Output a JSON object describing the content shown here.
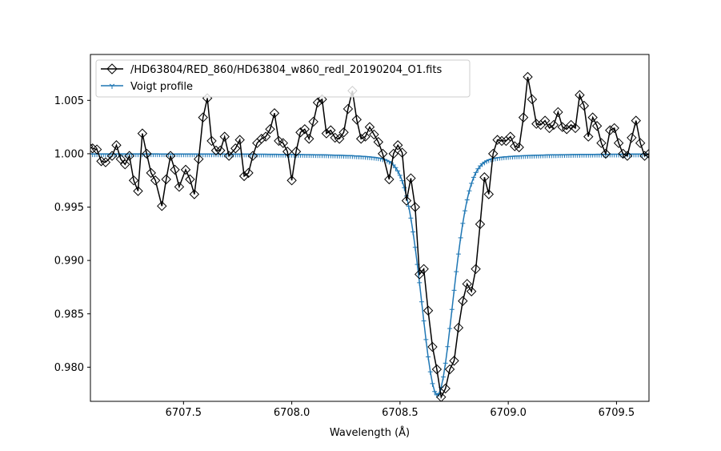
{
  "chart_data": {
    "type": "line",
    "title": "",
    "xlabel": "Wavelength (Å)",
    "ylabel": "",
    "xlim": [
      6707.07,
      6709.65
    ],
    "ylim": [
      0.9768,
      1.0093
    ],
    "xticks": [
      6707.5,
      6708.0,
      6708.5,
      6709.0,
      6709.5
    ],
    "xtick_labels": [
      "6707.5",
      "6708.0",
      "6708.5",
      "6709.0",
      "6709.5"
    ],
    "yticks": [
      0.98,
      0.985,
      0.99,
      0.995,
      1.0,
      1.005
    ],
    "ytick_labels": [
      "0.980",
      "0.985",
      "0.990",
      "0.995",
      "1.000",
      "1.005"
    ],
    "grid": false,
    "legend_position": "top-left",
    "series": [
      {
        "name": "/HD63804/RED_860/HD63804_w860_redl_20190204_O1.fits",
        "color": "#000000",
        "marker": "diamond",
        "x": [
          6707.06,
          6707.08,
          6707.1,
          6707.12,
          6707.14,
          6707.17,
          6707.19,
          6707.21,
          6707.23,
          6707.25,
          6707.27,
          6707.29,
          6707.31,
          6707.33,
          6707.35,
          6707.37,
          6707.4,
          6707.42,
          6707.44,
          6707.46,
          6707.48,
          6707.51,
          6707.53,
          6707.55,
          6707.57,
          6707.59,
          6707.61,
          6707.63,
          6707.65,
          6707.67,
          6707.69,
          6707.71,
          6707.74,
          6707.76,
          6707.78,
          6707.8,
          6707.82,
          6707.84,
          6707.86,
          6707.88,
          6707.9,
          6707.92,
          6707.94,
          6707.96,
          6707.98,
          6708.0,
          6708.02,
          6708.04,
          6708.06,
          6708.08,
          6708.1,
          6708.12,
          6708.14,
          6708.16,
          6708.18,
          6708.2,
          6708.22,
          6708.24,
          6708.26,
          6708.28,
          6708.3,
          6708.32,
          6708.34,
          6708.36,
          6708.38,
          6708.4,
          6708.42,
          6708.45,
          6708.47,
          6708.49,
          6708.51,
          6708.53,
          6708.55,
          6708.57,
          6708.59,
          6708.61,
          6708.63,
          6708.65,
          6708.67,
          6708.69,
          6708.71,
          6708.73,
          6708.75,
          6708.77,
          6708.79,
          6708.81,
          6708.83,
          6708.85,
          6708.87,
          6708.89,
          6708.91,
          6708.93,
          6708.95,
          6708.97,
          6708.99,
          6709.01,
          6709.03,
          6709.05,
          6709.07,
          6709.09,
          6709.11,
          6709.13,
          6709.15,
          6709.17,
          6709.19,
          6709.21,
          6709.23,
          6709.25,
          6709.27,
          6709.29,
          6709.31,
          6709.33,
          6709.35,
          6709.37,
          6709.39,
          6709.41,
          6709.43,
          6709.45,
          6709.47,
          6709.49,
          6709.51,
          6709.53,
          6709.55,
          6709.57,
          6709.59,
          6709.61,
          6709.63,
          6709.65
        ],
        "y": [
          1.0007,
          1.0005,
          1.0004,
          0.9993,
          0.9992,
          0.9998,
          1.0008,
          0.9995,
          0.999,
          0.9998,
          0.9975,
          0.9965,
          1.0019,
          1.0,
          0.9982,
          0.9975,
          0.9951,
          0.9976,
          0.9998,
          0.9985,
          0.9969,
          0.9985,
          0.9976,
          0.9962,
          0.9995,
          1.0034,
          1.0052,
          1.0012,
          1.0003,
          1.0003,
          1.0016,
          0.9998,
          1.0005,
          1.0013,
          0.9979,
          0.9982,
          0.9998,
          1.001,
          1.0014,
          1.0016,
          1.0023,
          1.0038,
          1.0012,
          1.001,
          1.0002,
          0.9975,
          1.0002,
          1.002,
          1.0023,
          1.0014,
          1.003,
          1.0048,
          1.0051,
          1.0019,
          1.0022,
          1.0015,
          1.0014,
          1.002,
          1.0042,
          1.0059,
          1.0032,
          1.0014,
          1.0016,
          1.0025,
          1.0018,
          1.0011,
          1.0,
          0.9976,
          1.0,
          1.0008,
          1.0001,
          0.9956,
          0.9977,
          0.995,
          0.9887,
          0.9892,
          0.9853,
          0.9819,
          0.9798,
          0.9772,
          0.978,
          0.9798,
          0.9806,
          0.9837,
          0.9862,
          0.9878,
          0.9871,
          0.9892,
          0.9934,
          0.9978,
          0.9962,
          1.0,
          1.0013,
          1.0012,
          1.0012,
          1.0016,
          1.0007,
          1.0006,
          1.0034,
          1.0072,
          1.0051,
          1.0028,
          1.0027,
          1.0031,
          1.0024,
          1.0027,
          1.0039,
          1.0025,
          1.0023,
          1.0027,
          1.0024,
          1.0055,
          1.0045,
          1.0016,
          1.0034,
          1.0026,
          1.001,
          1.0,
          1.0022,
          1.0024,
          1.001,
          1.0,
          0.9998,
          1.0015,
          1.0031,
          1.001,
          0.9998,
          1.0
        ]
      },
      {
        "name": "Voigt profile",
        "color": "#1f77b4",
        "marker": "tri_down",
        "model": {
          "baseline": 1.0,
          "center": 6708.672,
          "depth": 0.0226,
          "sigma": 0.068,
          "gamma": 0.012,
          "x_step": 0.01
        }
      }
    ]
  }
}
